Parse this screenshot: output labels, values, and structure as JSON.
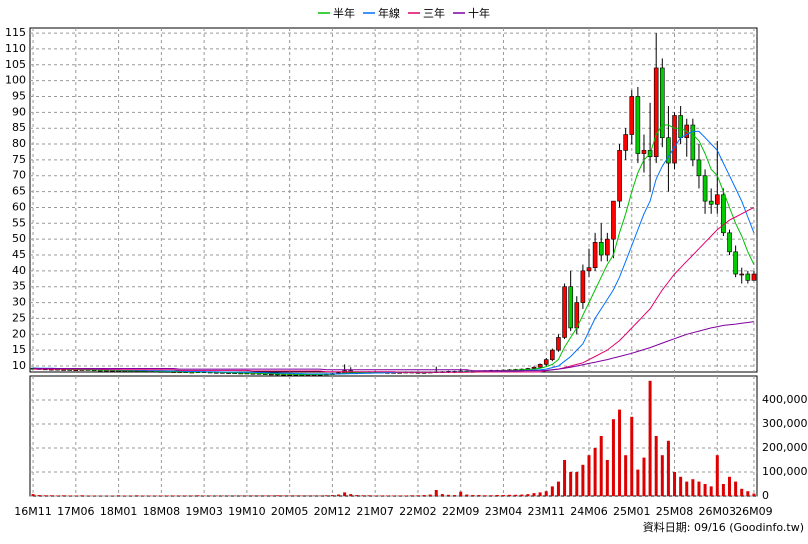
{
  "chart_data": {
    "type": "candlestick",
    "categories": [
      "16M11",
      null,
      null,
      null,
      null,
      null,
      null,
      "17M06",
      null,
      null,
      null,
      null,
      null,
      null,
      "18M01",
      null,
      null,
      null,
      null,
      null,
      null,
      "18M08",
      null,
      null,
      null,
      null,
      null,
      null,
      "19M03",
      null,
      null,
      null,
      null,
      null,
      null,
      "19M10",
      null,
      null,
      null,
      null,
      null,
      null,
      "20M05",
      null,
      null,
      null,
      null,
      null,
      null,
      "20M12",
      null,
      null,
      null,
      null,
      null,
      null,
      "21M07",
      null,
      null,
      null,
      null,
      null,
      null,
      "22M02",
      null,
      null,
      null,
      null,
      null,
      null,
      "22M09",
      null,
      null,
      null,
      null,
      null,
      null,
      "23M04",
      null,
      null,
      null,
      null,
      null,
      null,
      "23M11",
      null,
      null,
      null,
      null,
      null,
      null,
      "24M06",
      null,
      null,
      null,
      null,
      null,
      null,
      "25M01",
      null,
      null,
      null,
      null,
      null,
      null,
      "25M08",
      null,
      null,
      null,
      null,
      null,
      null,
      "26M03",
      null,
      null,
      null,
      null,
      null,
      "26M09"
    ],
    "candles": [
      [
        9.3,
        9.5,
        9.0,
        9.2
      ],
      [
        9.2,
        9.4,
        8.9,
        9.1
      ],
      [
        9.1,
        9.3,
        8.8,
        9.0
      ],
      [
        9.0,
        9.2,
        8.8,
        9.0
      ],
      [
        9.0,
        9.2,
        8.7,
        8.9
      ],
      [
        8.9,
        9.1,
        8.7,
        8.9
      ],
      [
        8.9,
        9.1,
        8.6,
        8.8
      ],
      [
        8.8,
        9.0,
        8.6,
        8.8
      ],
      [
        8.8,
        9.1,
        8.6,
        8.9
      ],
      [
        8.9,
        9.1,
        8.6,
        8.8
      ],
      [
        8.8,
        9.0,
        8.5,
        8.7
      ],
      [
        8.7,
        8.9,
        8.5,
        8.7
      ],
      [
        8.7,
        8.9,
        8.4,
        8.6
      ],
      [
        8.6,
        8.8,
        8.4,
        8.6
      ],
      [
        8.6,
        8.8,
        8.3,
        8.5
      ],
      [
        8.5,
        8.7,
        8.3,
        8.5
      ],
      [
        8.5,
        8.7,
        8.2,
        8.4
      ],
      [
        8.4,
        8.7,
        8.2,
        8.5
      ],
      [
        8.5,
        8.7,
        8.2,
        8.4
      ],
      [
        8.4,
        8.6,
        8.2,
        8.4
      ],
      [
        8.4,
        8.6,
        8.1,
        8.3
      ],
      [
        8.3,
        8.5,
        8.1,
        8.3
      ],
      [
        8.3,
        8.5,
        8.0,
        8.2
      ],
      [
        8.2,
        8.4,
        8.0,
        8.2
      ],
      [
        8.2,
        8.4,
        8.0,
        8.2
      ],
      [
        8.2,
        8.4,
        7.9,
        8.1
      ],
      [
        8.1,
        8.3,
        7.9,
        8.1
      ],
      [
        8.1,
        8.4,
        7.9,
        8.2
      ],
      [
        8.2,
        8.4,
        7.9,
        8.1
      ],
      [
        8.1,
        8.3,
        7.8,
        8.0
      ],
      [
        8.0,
        8.2,
        7.8,
        8.0
      ],
      [
        8.0,
        8.2,
        7.7,
        7.9
      ],
      [
        7.9,
        8.1,
        7.7,
        7.9
      ],
      [
        7.9,
        8.1,
        7.6,
        7.8
      ],
      [
        7.8,
        8.0,
        7.6,
        7.8
      ],
      [
        7.8,
        8.0,
        7.5,
        7.7
      ],
      [
        7.7,
        7.9,
        7.5,
        7.7
      ],
      [
        7.7,
        7.9,
        7.4,
        7.6
      ],
      [
        7.6,
        7.8,
        7.3,
        7.5
      ],
      [
        7.5,
        7.7,
        7.3,
        7.5
      ],
      [
        7.5,
        7.7,
        7.0,
        7.2
      ],
      [
        7.2,
        7.6,
        7.0,
        7.4
      ],
      [
        7.4,
        7.6,
        7.2,
        7.4
      ],
      [
        7.4,
        7.6,
        7.1,
        7.3
      ],
      [
        7.3,
        7.5,
        7.0,
        7.2
      ],
      [
        7.2,
        7.5,
        7.0,
        7.3
      ],
      [
        7.3,
        7.5,
        7.1,
        7.3
      ],
      [
        7.3,
        7.6,
        7.1,
        7.4
      ],
      [
        7.4,
        7.7,
        7.2,
        7.5
      ],
      [
        7.5,
        7.8,
        7.3,
        7.6
      ],
      [
        7.6,
        8.0,
        7.4,
        7.8
      ],
      [
        7.8,
        10.5,
        7.6,
        8.5
      ],
      [
        8.5,
        9.6,
        7.8,
        8.0
      ],
      [
        8.0,
        8.3,
        7.7,
        7.9
      ],
      [
        7.9,
        8.2,
        7.7,
        8.0
      ],
      [
        8.0,
        8.3,
        7.8,
        8.1
      ],
      [
        8.1,
        8.4,
        7.9,
        8.1
      ],
      [
        8.1,
        8.3,
        7.8,
        8.0
      ],
      [
        8.0,
        8.2,
        7.8,
        8.0
      ],
      [
        8.0,
        8.2,
        7.8,
        8.0
      ],
      [
        8.0,
        8.2,
        7.8,
        8.0
      ],
      [
        8.0,
        8.3,
        7.8,
        8.1
      ],
      [
        8.1,
        8.3,
        7.8,
        8.0
      ],
      [
        8.0,
        8.2,
        7.8,
        8.0
      ],
      [
        8.0,
        8.2,
        7.8,
        8.0
      ],
      [
        8.0,
        8.3,
        7.8,
        8.1
      ],
      [
        8.1,
        9.8,
        7.9,
        8.2
      ],
      [
        8.2,
        8.4,
        7.8,
        8.0
      ],
      [
        8.0,
        8.5,
        7.8,
        8.3
      ],
      [
        8.3,
        8.5,
        7.8,
        8.0
      ],
      [
        8.0,
        9.2,
        7.9,
        8.4
      ],
      [
        8.4,
        8.6,
        8.0,
        8.2
      ],
      [
        8.2,
        8.5,
        8.0,
        8.3
      ],
      [
        8.3,
        8.6,
        8.1,
        8.4
      ],
      [
        8.4,
        8.7,
        8.2,
        8.5
      ],
      [
        8.5,
        8.8,
        8.3,
        8.6
      ],
      [
        8.6,
        8.8,
        8.4,
        8.6
      ],
      [
        8.6,
        8.9,
        8.4,
        8.7
      ],
      [
        8.7,
        9.0,
        8.5,
        8.8
      ],
      [
        8.8,
        9.1,
        8.6,
        8.9
      ],
      [
        8.9,
        9.2,
        8.7,
        9.0
      ],
      [
        9.0,
        9.4,
        8.8,
        9.2
      ],
      [
        9.2,
        9.9,
        9.0,
        9.6
      ],
      [
        9.6,
        10.8,
        9.4,
        10.5
      ],
      [
        10.5,
        12.5,
        10,
        12
      ],
      [
        12,
        15.5,
        11.5,
        15
      ],
      [
        15,
        20,
        14.5,
        19
      ],
      [
        19,
        36,
        18.5,
        35
      ],
      [
        35,
        40,
        21,
        22
      ],
      [
        22,
        32,
        20,
        30
      ],
      [
        30,
        42,
        28,
        40
      ],
      [
        40,
        47,
        38,
        41
      ],
      [
        41,
        52,
        40,
        49
      ],
      [
        49,
        55,
        43,
        45
      ],
      [
        45,
        52,
        43,
        50
      ],
      [
        50,
        62,
        44,
        62
      ],
      [
        62,
        80,
        60,
        78
      ],
      [
        78,
        85,
        75,
        83
      ],
      [
        83,
        97,
        80,
        95
      ],
      [
        95,
        98,
        74,
        77
      ],
      [
        77,
        83,
        71,
        78
      ],
      [
        78,
        93,
        65,
        76
      ],
      [
        76,
        115,
        74,
        104
      ],
      [
        104,
        107,
        79,
        82
      ],
      [
        82,
        92,
        65,
        74
      ],
      [
        74,
        90,
        72,
        89
      ],
      [
        89,
        92,
        80,
        82
      ],
      [
        82,
        88,
        76,
        86
      ],
      [
        86,
        88,
        73,
        75
      ],
      [
        75,
        80,
        66,
        70
      ],
      [
        70,
        72,
        58,
        62
      ],
      [
        62,
        66,
        58,
        61
      ],
      [
        61,
        81,
        58,
        64
      ],
      [
        64,
        66,
        51,
        52
      ],
      [
        52,
        53,
        45,
        46
      ],
      [
        46,
        48,
        38,
        39
      ],
      [
        39,
        41,
        36,
        39
      ],
      [
        39,
        40,
        36,
        37
      ],
      [
        37,
        40,
        37,
        39
      ]
    ],
    "up_color": "#ff0000",
    "down_color": "#00cc00",
    "series": [
      {
        "name": "半年",
        "color": "#00c000",
        "values": [
          9.3,
          9.2,
          9.2,
          9.1,
          9.0,
          9.0,
          8.9,
          8.9,
          8.9,
          8.8,
          8.8,
          8.7,
          8.7,
          8.6,
          8.6,
          8.5,
          8.5,
          8.5,
          8.4,
          8.4,
          8.4,
          8.3,
          8.3,
          8.2,
          8.2,
          8.2,
          8.1,
          8.1,
          8.1,
          8.1,
          8.0,
          8.0,
          7.9,
          7.9,
          7.8,
          7.8,
          7.7,
          7.7,
          7.6,
          7.6,
          7.5,
          7.4,
          7.4,
          7.4,
          7.3,
          7.3,
          7.3,
          7.3,
          7.4,
          7.4,
          7.5,
          7.7,
          7.8,
          7.9,
          7.9,
          8.0,
          8.0,
          8.0,
          8.0,
          8.0,
          8.0,
          8.0,
          8.0,
          8.0,
          8.0,
          8.0,
          8.1,
          8.1,
          8.1,
          8.1,
          8.2,
          8.2,
          8.2,
          8.3,
          8.3,
          8.4,
          8.5,
          8.5,
          8.6,
          8.7,
          8.8,
          8.9,
          9.0,
          9.3,
          9.8,
          10.5,
          12,
          16,
          19,
          22,
          26,
          30,
          34,
          38,
          42,
          45,
          52,
          58,
          65,
          71,
          75,
          77,
          83,
          86,
          86,
          85,
          85,
          84,
          83,
          81,
          77,
          72,
          70,
          65,
          60,
          55,
          51,
          46,
          42
        ]
      },
      {
        "name": "年線",
        "color": "#0070ff",
        "values": [
          9.4,
          9.3,
          9.3,
          9.3,
          9.2,
          9.2,
          9.1,
          9.1,
          9.0,
          9.0,
          9.0,
          8.9,
          8.9,
          8.8,
          8.8,
          8.7,
          8.7,
          8.6,
          8.6,
          8.5,
          8.5,
          8.5,
          8.4,
          8.4,
          8.4,
          8.3,
          8.3,
          8.3,
          8.2,
          8.2,
          8.2,
          8.1,
          8.1,
          8.1,
          8.0,
          8.0,
          8.0,
          7.9,
          7.9,
          7.8,
          7.8,
          7.7,
          7.7,
          7.6,
          7.6,
          7.5,
          7.5,
          7.5,
          7.5,
          7.5,
          7.5,
          7.5,
          7.6,
          7.6,
          7.7,
          7.7,
          7.8,
          7.8,
          7.9,
          7.9,
          8.0,
          8.0,
          8.0,
          8.0,
          8.0,
          8.0,
          8.0,
          8.0,
          8.1,
          8.1,
          8.1,
          8.1,
          8.2,
          8.2,
          8.2,
          8.3,
          8.3,
          8.3,
          8.4,
          8.4,
          8.5,
          8.6,
          8.7,
          8.8,
          9,
          9.5,
          10,
          11.5,
          13,
          15,
          17,
          21,
          25,
          28,
          31,
          34,
          38,
          43,
          48,
          53,
          58,
          62,
          69,
          73,
          76,
          79,
          82,
          83,
          84,
          84,
          82,
          80,
          78,
          74,
          70,
          66,
          62,
          57,
          52
        ]
      },
      {
        "name": "三年",
        "color": "#e0006c",
        "values": [
          9.0,
          9.0,
          9.0,
          9.0,
          9.0,
          9.0,
          9.0,
          9.0,
          9.0,
          9.0,
          9.0,
          9.0,
          8.8,
          8.8,
          8.8,
          8.8,
          8.8,
          8.8,
          8.8,
          8.8,
          8.8,
          8.8,
          8.8,
          8.8,
          8.6,
          8.6,
          8.6,
          8.6,
          8.6,
          8.6,
          8.6,
          8.6,
          8.6,
          8.6,
          8.6,
          8.6,
          8.4,
          8.4,
          8.4,
          8.4,
          8.4,
          8.4,
          8.4,
          8.4,
          8.4,
          8.4,
          8.4,
          8.4,
          8.2,
          8.2,
          8.2,
          8.2,
          8.2,
          8.2,
          8.2,
          8.2,
          8.2,
          8.2,
          8.2,
          8.2,
          8.0,
          8.0,
          8.0,
          8.0,
          8.0,
          8.0,
          8.0,
          8.0,
          8.0,
          8.0,
          8.0,
          8.0,
          8.1,
          8.1,
          8.1,
          8.1,
          8.1,
          8.1,
          8.1,
          8.1,
          8.1,
          8.1,
          8.1,
          8.1,
          8.5,
          8.8,
          9,
          9.5,
          10,
          10.5,
          11,
          12,
          13,
          14,
          15,
          16.5,
          18,
          20,
          22,
          24,
          26,
          28,
          31,
          34,
          36.5,
          39,
          41,
          43,
          45,
          47,
          49,
          51,
          53,
          54.5,
          56,
          57,
          58,
          59,
          60
        ]
      },
      {
        "name": "十年",
        "color": "#8000a0",
        "values": [
          9.2,
          9.2,
          9.2,
          9.2,
          9.2,
          9.2,
          9.2,
          9.2,
          9.2,
          9.2,
          9.2,
          9.2,
          9.2,
          9.2,
          9.2,
          9.2,
          9.2,
          9.2,
          9.2,
          9.2,
          9.2,
          9.2,
          9.2,
          9.2,
          9.0,
          9.0,
          9.0,
          9.0,
          9.0,
          9.0,
          9.0,
          9.0,
          9.0,
          9.0,
          9.0,
          9.0,
          9.0,
          9.0,
          9.0,
          9.0,
          9.0,
          9.0,
          9.0,
          9.0,
          9.0,
          9.0,
          9.0,
          9.0,
          8.8,
          8.8,
          8.8,
          8.8,
          8.8,
          8.8,
          8.8,
          8.8,
          8.8,
          8.8,
          8.8,
          8.8,
          8.8,
          8.8,
          8.8,
          8.8,
          8.8,
          8.8,
          8.8,
          8.8,
          8.8,
          8.8,
          8.8,
          8.8,
          8.5,
          8.5,
          8.5,
          8.5,
          8.5,
          8.5,
          8.5,
          8.5,
          8.5,
          8.5,
          8.5,
          8.5,
          8.6,
          8.8,
          9,
          9.3,
          9.6,
          10,
          10.4,
          10.8,
          11.2,
          11.6,
          12,
          12.5,
          13,
          13.5,
          14,
          14.6,
          15.2,
          15.8,
          16.5,
          17.2,
          17.9,
          18.6,
          19.3,
          20,
          20.5,
          21,
          21.5,
          22,
          22.4,
          22.8,
          23,
          23.2,
          23.5,
          23.7,
          24
        ]
      }
    ],
    "ylim": [
      8.1,
      116.6
    ],
    "yticks": [
      10,
      15,
      20,
      25,
      30,
      35,
      40,
      45,
      50,
      55,
      60,
      65,
      70,
      75,
      80,
      85,
      90,
      95,
      100,
      105,
      110,
      115
    ],
    "grid": true,
    "volume": {
      "type": "bar",
      "color": "#dd0000",
      "values": [
        8000,
        4000,
        3000,
        3000,
        2000,
        3000,
        2000,
        2000,
        3000,
        2000,
        2000,
        2000,
        2000,
        2000,
        3000,
        2000,
        2000,
        3000,
        2000,
        2000,
        2000,
        2000,
        2000,
        2000,
        2000,
        2000,
        2000,
        3000,
        2000,
        2000,
        2000,
        2000,
        2000,
        2000,
        2000,
        2000,
        2000,
        2000,
        2000,
        2000,
        3000,
        2000,
        2000,
        2000,
        2000,
        2000,
        2000,
        2000,
        3000,
        4000,
        6000,
        15000,
        8000,
        4000,
        3000,
        3000,
        2000,
        2000,
        2000,
        2000,
        2000,
        2000,
        3000,
        3000,
        4000,
        6000,
        25000,
        8000,
        5000,
        4000,
        18000,
        6000,
        4000,
        4000,
        3000,
        3000,
        4000,
        4000,
        5000,
        5000,
        6000,
        8000,
        12000,
        15000,
        20000,
        40000,
        60000,
        150000,
        100000,
        100000,
        130000,
        170000,
        200000,
        250000,
        150000,
        320000,
        360000,
        170000,
        330000,
        110000,
        160000,
        480000,
        250000,
        170000,
        230000,
        100000,
        80000,
        60000,
        70000,
        60000,
        50000,
        40000,
        170000,
        50000,
        80000,
        60000,
        30000,
        20000,
        10000
      ],
      "ylim": [
        0,
        500000
      ],
      "yticks": [
        0,
        {
          "value": 100000,
          "label": "100,000"
        },
        {
          "value": 200000,
          "label": "200,000"
        },
        {
          "value": 300000,
          "label": "300,000"
        },
        {
          "value": 400000,
          "label": "400,000"
        }
      ]
    }
  },
  "footer": "資料日期: 09/16 (Goodinfo.tw)"
}
